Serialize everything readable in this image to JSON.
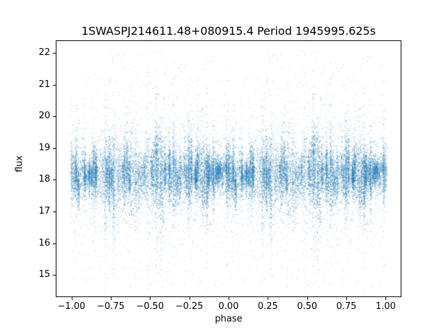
{
  "figure": {
    "title": "1SWASPJ214611.48+080915.4 Period 1945995.625s"
  },
  "chart_data": {
    "type": "scatter",
    "title": "1SWASPJ214611.48+080915.4 Period 1945995.625s",
    "xlabel": "phase",
    "ylabel": "flux",
    "xlim": [
      -1.1,
      1.1
    ],
    "ylim": [
      14.3,
      22.4
    ],
    "xticks": [
      -1.0,
      -0.75,
      -0.5,
      -0.25,
      0.0,
      0.25,
      0.5,
      0.75,
      1.0
    ],
    "xtick_labels": [
      "−1.00",
      "−0.75",
      "−0.50",
      "−0.25",
      "0.00",
      "0.25",
      "0.50",
      "0.75",
      "1.00"
    ],
    "yticks": [
      15,
      16,
      17,
      18,
      19,
      20,
      21,
      22
    ],
    "ytick_labels": [
      "15",
      "16",
      "17",
      "18",
      "19",
      "20",
      "21",
      "22"
    ],
    "grid": false,
    "legend": null,
    "marker_color": "#1f77b4",
    "marker_alpha": 0.5,
    "marker_size_px": 1,
    "series_description": "Phase-folded SuperWASP light curve, identical data plotted at phase and phase-1; dense vertical stripes of observations centered near flux 18.2 with spread growing toward phase ±0.5 and sparse outliers spanning flux 14.6–22.1",
    "n_points": 16000,
    "seed": 42,
    "n_stripes": 72,
    "stripe_jitter": 0.0045,
    "flux_mean": 18.2,
    "stripe_mean_scatter": 0.12,
    "flux_sigma_core": 0.42,
    "flux_sigma_tail": 1.1,
    "tail_fraction": 0.12,
    "diffuse_fraction": 0.05,
    "outlier_fraction": 0.012,
    "outlier_range": [
      14.6,
      22.1
    ],
    "env_base": 0.75,
    "env_amp": 0.55
  }
}
